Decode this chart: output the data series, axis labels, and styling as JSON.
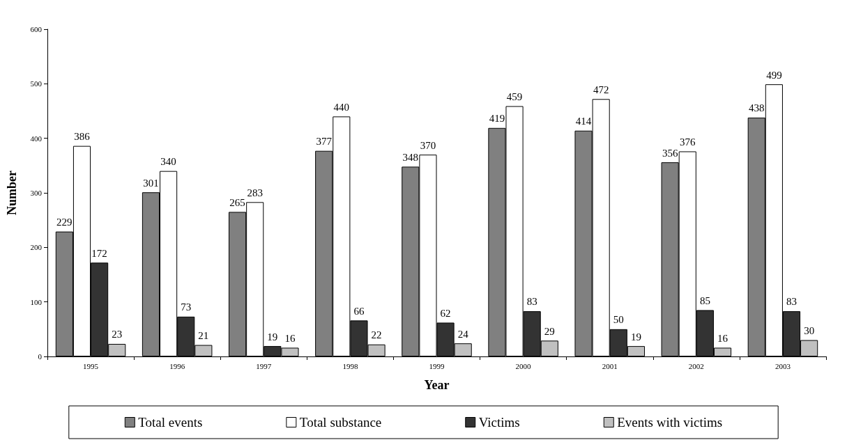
{
  "chart_data": {
    "type": "bar",
    "xlabel": "Year",
    "ylabel": "Number",
    "categories": [
      "1995",
      "1996",
      "1997",
      "1998",
      "1999",
      "2000",
      "2001",
      "2002",
      "2003"
    ],
    "series": [
      {
        "name": "Total events",
        "color": "#808080",
        "values": [
          229,
          301,
          265,
          377,
          348,
          419,
          414,
          356,
          438
        ]
      },
      {
        "name": "Total substance",
        "color": "#ffffff",
        "values": [
          386,
          340,
          283,
          440,
          370,
          459,
          472,
          376,
          499
        ]
      },
      {
        "name": "Victims",
        "color": "#333333",
        "values": [
          172,
          73,
          19,
          66,
          62,
          83,
          50,
          85,
          83
        ]
      },
      {
        "name": "Events with victims",
        "color": "#c0c0c0",
        "values": [
          23,
          21,
          16,
          22,
          24,
          29,
          19,
          16,
          30
        ]
      }
    ],
    "ylim": [
      0,
      600
    ],
    "yticks": [
      0,
      100,
      200,
      300,
      400,
      500,
      600
    ],
    "grid": false,
    "legend": "bottom",
    "data_labels": true
  }
}
